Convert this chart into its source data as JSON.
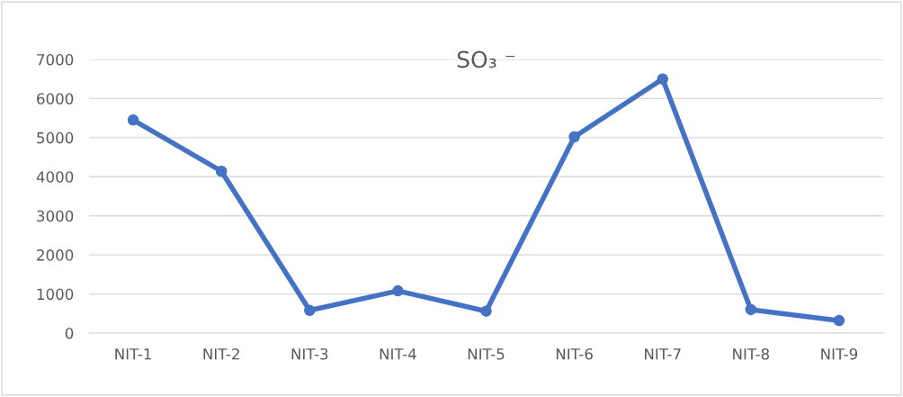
{
  "chart_data": {
    "type": "line",
    "title": "SO₃ ⁻",
    "categories": [
      "NIT-1",
      "NIT-2",
      "NIT-3",
      "NIT-4",
      "NIT-5",
      "NIT-6",
      "NIT-7",
      "NIT-8",
      "NIT-9"
    ],
    "series": [
      {
        "color": "#4472c4",
        "values": [
          5450,
          4140,
          580,
          1080,
          560,
          5020,
          6500,
          600,
          320
        ]
      }
    ],
    "ylim": [
      0,
      7000
    ],
    "yticks": [
      0,
      1000,
      2000,
      3000,
      4000,
      5000,
      6000,
      7000
    ],
    "grid": "y",
    "marker": "circle",
    "line_style": "solid",
    "legend": false
  }
}
